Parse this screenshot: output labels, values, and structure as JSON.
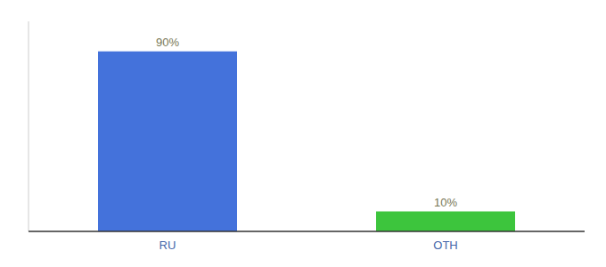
{
  "chart_data": {
    "type": "bar",
    "categories": [
      "RU",
      "OTH"
    ],
    "values": [
      90,
      10
    ],
    "value_labels": [
      "90%",
      "10%"
    ],
    "colors": [
      "#4472db",
      "#3dc53d"
    ],
    "ylim": [
      0,
      105
    ],
    "data_labels": true,
    "tick_labels": "x",
    "grid": false
  }
}
